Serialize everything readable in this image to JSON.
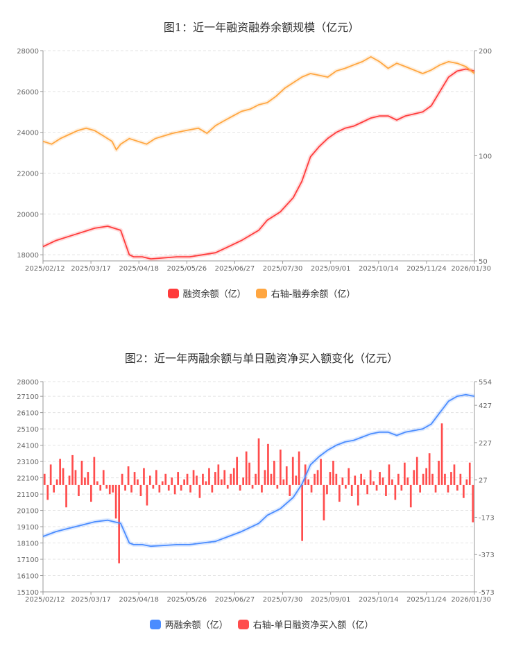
{
  "colors": {
    "red": "#ff3b3b",
    "orange": "#ffa640",
    "blue": "#4a8cff",
    "bar_red": "#ff4d4d"
  },
  "chart_data": [
    {
      "type": "line",
      "title": "图1：近一年融资融券余额规模（亿元）",
      "x_ticks": [
        "2025/02/12",
        "2025/03/17",
        "2025/04/18",
        "2025/05/26",
        "2025/06/27",
        "2025/07/30",
        "2025/09/01",
        "2025/10/14",
        "2025/11/24",
        "2026/01/30"
      ],
      "y_left_ticks": [
        "28000",
        "26000",
        "24000",
        "22000",
        "20000",
        "18000"
      ],
      "y_left_lim": [
        17700,
        28000
      ],
      "y_right_ticks": [
        "200",
        "100",
        "50"
      ],
      "y_right_scale": "log",
      "y_right_lim": [
        50,
        200
      ],
      "legend": [
        "融资余额（亿）",
        "右轴-融券余额（亿）"
      ],
      "grid": true,
      "legend_position": "bottom",
      "series": [
        {
          "name": "融资余额（亿）",
          "axis": "left",
          "color": "#ff3b3b",
          "x": [
            0,
            0.03,
            0.06,
            0.09,
            0.12,
            0.15,
            0.18,
            0.2,
            0.21,
            0.23,
            0.25,
            0.28,
            0.31,
            0.34,
            0.37,
            0.4,
            0.43,
            0.46,
            0.5,
            0.52,
            0.55,
            0.58,
            0.6,
            0.62,
            0.64,
            0.66,
            0.68,
            0.7,
            0.72,
            0.74,
            0.76,
            0.78,
            0.8,
            0.82,
            0.84,
            0.86,
            0.88,
            0.9,
            0.92,
            0.94,
            0.96,
            0.98,
            1.0
          ],
          "y": [
            18400,
            18700,
            18900,
            19100,
            19300,
            19400,
            19200,
            18000,
            17900,
            17900,
            17800,
            17850,
            17900,
            17900,
            18000,
            18100,
            18400,
            18700,
            19200,
            19700,
            20100,
            20800,
            21600,
            22800,
            23300,
            23700,
            24000,
            24200,
            24300,
            24500,
            24700,
            24800,
            24800,
            24600,
            24800,
            24900,
            25000,
            25300,
            26000,
            26700,
            27000,
            27100,
            27000
          ]
        },
        {
          "name": "右轴-融券余额（亿）",
          "axis": "right",
          "color": "#ffa640",
          "x": [
            0,
            0.02,
            0.04,
            0.06,
            0.08,
            0.1,
            0.12,
            0.14,
            0.16,
            0.17,
            0.18,
            0.2,
            0.22,
            0.24,
            0.26,
            0.28,
            0.3,
            0.33,
            0.36,
            0.38,
            0.4,
            0.42,
            0.44,
            0.46,
            0.48,
            0.5,
            0.52,
            0.54,
            0.56,
            0.58,
            0.6,
            0.62,
            0.64,
            0.66,
            0.68,
            0.7,
            0.72,
            0.74,
            0.76,
            0.78,
            0.8,
            0.82,
            0.84,
            0.86,
            0.88,
            0.9,
            0.92,
            0.94,
            0.96,
            0.98,
            1.0
          ],
          "y": [
            110,
            108,
            112,
            115,
            118,
            120,
            118,
            114,
            110,
            104,
            108,
            112,
            110,
            108,
            112,
            114,
            116,
            118,
            120,
            116,
            122,
            126,
            130,
            134,
            136,
            140,
            142,
            148,
            156,
            162,
            168,
            172,
            170,
            168,
            175,
            178,
            182,
            186,
            192,
            186,
            178,
            184,
            180,
            176,
            172,
            176,
            182,
            186,
            184,
            180,
            172
          ]
        }
      ]
    },
    {
      "type": "bar+line",
      "title": "图2：近一年两融余额与单日融资净买入额变化（亿元）",
      "x_ticks": [
        "2025/02/12",
        "2025/03/17",
        "2025/04/18",
        "2025/05/26",
        "2025/06/27",
        "2025/07/30",
        "2025/09/01",
        "2025/10/14",
        "2025/11/24",
        "2026/01/30"
      ],
      "y_left_ticks": [
        "28000",
        "27100",
        "26100",
        "25100",
        "24100",
        "23100",
        "22100",
        "21100",
        "20100",
        "19100",
        "18100",
        "17100",
        "16100",
        "15100"
      ],
      "y_left_lim": [
        15100,
        28000
      ],
      "y_right_ticks": [
        "554",
        "427",
        "227",
        "27",
        "-173",
        "-373",
        "-573"
      ],
      "y_right_lim": [
        -573,
        554
      ],
      "legend": [
        "两融余额（亿）",
        "右轴-单日融资净买入额（亿）"
      ],
      "grid": true,
      "legend_position": "bottom",
      "series": [
        {
          "name": "两融余额（亿）",
          "axis": "left",
          "color": "#4a8cff",
          "x": [
            0,
            0.03,
            0.06,
            0.09,
            0.12,
            0.15,
            0.18,
            0.2,
            0.21,
            0.23,
            0.25,
            0.28,
            0.31,
            0.34,
            0.37,
            0.4,
            0.43,
            0.46,
            0.5,
            0.52,
            0.55,
            0.58,
            0.6,
            0.62,
            0.64,
            0.66,
            0.68,
            0.7,
            0.72,
            0.74,
            0.76,
            0.78,
            0.8,
            0.82,
            0.84,
            0.86,
            0.88,
            0.9,
            0.92,
            0.94,
            0.96,
            0.98,
            1.0
          ],
          "y": [
            18500,
            18800,
            19000,
            19200,
            19400,
            19500,
            19300,
            18100,
            18000,
            18000,
            17900,
            17950,
            18000,
            18000,
            18100,
            18200,
            18500,
            18800,
            19300,
            19800,
            20200,
            20900,
            21700,
            22900,
            23400,
            23800,
            24100,
            24300,
            24400,
            24600,
            24800,
            24900,
            24900,
            24700,
            24900,
            25000,
            25100,
            25400,
            26100,
            26800,
            27100,
            27200,
            27100
          ]
        },
        {
          "name": "右轴-单日融资净买入额（亿）",
          "axis": "right",
          "type": "bar",
          "color": "#ff4d4d",
          "values": [
            60,
            -80,
            110,
            -40,
            30,
            140,
            90,
            -120,
            50,
            160,
            80,
            -60,
            130,
            40,
            70,
            -90,
            150,
            20,
            -30,
            80,
            -20,
            -50,
            -40,
            -180,
            -420,
            60,
            -30,
            100,
            -40,
            70,
            30,
            -60,
            90,
            -110,
            50,
            -20,
            80,
            -40,
            20,
            60,
            -30,
            40,
            -50,
            70,
            -30,
            30,
            60,
            -40,
            80,
            50,
            -70,
            60,
            20,
            90,
            -40,
            70,
            110,
            30,
            80,
            -20,
            60,
            90,
            150,
            -30,
            40,
            180,
            120,
            -20,
            60,
            250,
            -40,
            80,
            220,
            60,
            130,
            -20,
            190,
            30,
            100,
            -60,
            150,
            50,
            180,
            -300,
            110,
            30,
            -40,
            60,
            80,
            140,
            -190,
            -50,
            70,
            130,
            60,
            -90,
            40,
            -20,
            90,
            -60,
            50,
            -110,
            60,
            30,
            -50,
            80,
            20,
            -30,
            70,
            40,
            -60,
            110,
            30,
            -80,
            60,
            -30,
            120,
            40,
            -120,
            80,
            150,
            -40,
            60,
            90,
            170,
            60,
            -40,
            130,
            330,
            60,
            -40,
            70,
            110,
            -30,
            60,
            -70,
            30,
            120,
            -200
          ]
        }
      ]
    }
  ]
}
